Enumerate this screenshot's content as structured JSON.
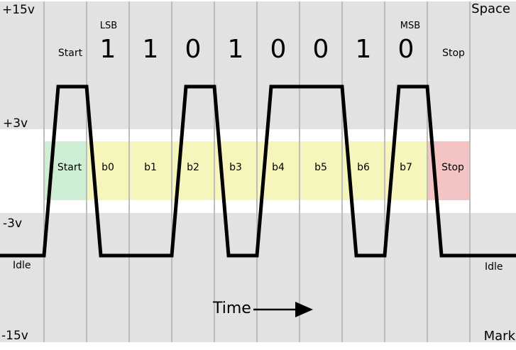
{
  "colors": {
    "plot_background": "#e2e2e2",
    "band_background": "#ffffff",
    "gridline": "#bdbdbd",
    "signal": "#000000",
    "start_cell": "#cdeed2",
    "data_cell": "#f6f6bc",
    "stop_cell": "#f4c3c3"
  },
  "voltage_scale": {
    "top": "+15v",
    "upper": "+3v",
    "lower": "-3v",
    "bottom": "-15v"
  },
  "line_states": {
    "space": "Space",
    "mark": "Mark",
    "idle_left": "Idle",
    "idle_right": "Idle"
  },
  "frame": {
    "start_label": "Start",
    "stop_label": "Stop",
    "lsb": "LSB",
    "msb": "MSB"
  },
  "bits": [
    "1",
    "1",
    "0",
    "1",
    "0",
    "0",
    "1",
    "0"
  ],
  "cells": [
    {
      "label": "Start",
      "type": "start"
    },
    {
      "label": "b0",
      "type": "data"
    },
    {
      "label": "b1",
      "type": "data"
    },
    {
      "label": "b2",
      "type": "data"
    },
    {
      "label": "b3",
      "type": "data"
    },
    {
      "label": "b4",
      "type": "data"
    },
    {
      "label": "b5",
      "type": "data"
    },
    {
      "label": "b6",
      "type": "data"
    },
    {
      "label": "b7",
      "type": "data"
    },
    {
      "label": "Stop",
      "type": "stop"
    }
  ],
  "time_axis": {
    "label": "Time"
  },
  "waveform": {
    "slots": [
      {
        "name": "Idle",
        "level": "mark"
      },
      {
        "name": "Start",
        "level": "space"
      },
      {
        "name": "b0",
        "bit": "1",
        "level": "mark"
      },
      {
        "name": "b1",
        "bit": "1",
        "level": "mark"
      },
      {
        "name": "b2",
        "bit": "0",
        "level": "space"
      },
      {
        "name": "b3",
        "bit": "1",
        "level": "mark"
      },
      {
        "name": "b4",
        "bit": "0",
        "level": "space"
      },
      {
        "name": "b5",
        "bit": "0",
        "level": "space"
      },
      {
        "name": "b6",
        "bit": "1",
        "level": "mark"
      },
      {
        "name": "b7",
        "bit": "0",
        "level": "space"
      },
      {
        "name": "Stop",
        "level": "mark"
      },
      {
        "name": "Idle",
        "level": "mark"
      }
    ]
  }
}
